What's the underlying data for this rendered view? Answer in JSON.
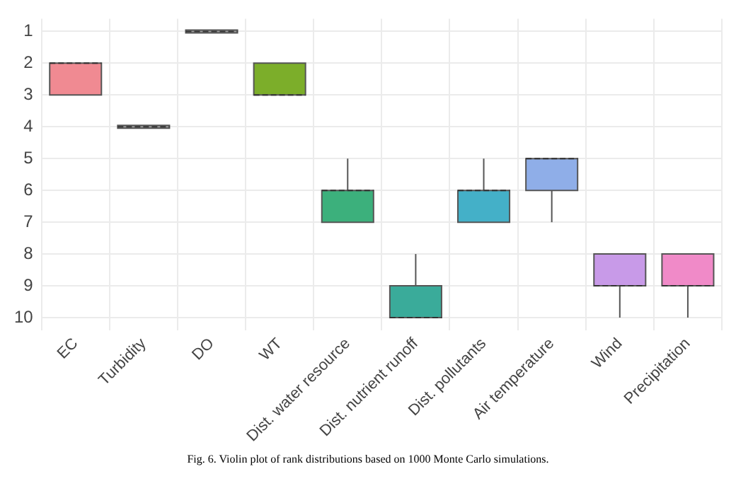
{
  "chart_data": {
    "type": "box",
    "categories": [
      "EC",
      "Turbidity",
      "DO",
      "WT",
      "Dist. water resource",
      "Dist. nutrient runoff",
      "Dist. pollutants",
      "Air temperature",
      "Wind",
      "Precipitation"
    ],
    "boxes": [
      {
        "low": 2,
        "q1": 2,
        "median": 2,
        "q3": 3,
        "high": 3
      },
      {
        "low": 4,
        "q1": 4,
        "median": 4,
        "q3": 4,
        "high": 4
      },
      {
        "low": 1,
        "q1": 1,
        "median": 1,
        "q3": 1,
        "high": 1
      },
      {
        "low": 2,
        "q1": 2,
        "median": 3,
        "q3": 3,
        "high": 3
      },
      {
        "low": 5,
        "q1": 6,
        "median": 6,
        "q3": 7,
        "high": 7
      },
      {
        "low": 8,
        "q1": 9,
        "median": 10,
        "q3": 10,
        "high": 10
      },
      {
        "low": 5,
        "q1": 6,
        "median": 6,
        "q3": 7,
        "high": 7
      },
      {
        "low": 5,
        "q1": 5,
        "median": 5,
        "q3": 6,
        "high": 7
      },
      {
        "low": 8,
        "q1": 8,
        "median": 9,
        "q3": 9,
        "high": 10
      },
      {
        "low": 8,
        "q1": 8,
        "median": 9,
        "q3": 9,
        "high": 10
      }
    ],
    "colors": [
      "#f08a92",
      "#999999",
      "#999999",
      "#7cae2a",
      "#3cb07c",
      "#3aab9a",
      "#44b0c8",
      "#8faee8",
      "#c89ae8",
      "#f08ac8"
    ],
    "ylim": [
      10.4,
      0.6
    ],
    "yticks": [
      1,
      2,
      3,
      4,
      5,
      6,
      7,
      8,
      9,
      10
    ],
    "grid": true,
    "legend": false,
    "annotations": [
      "Fig. 6.  Violin plot of rank distributions based on 1000 Monte Carlo simulations."
    ]
  }
}
